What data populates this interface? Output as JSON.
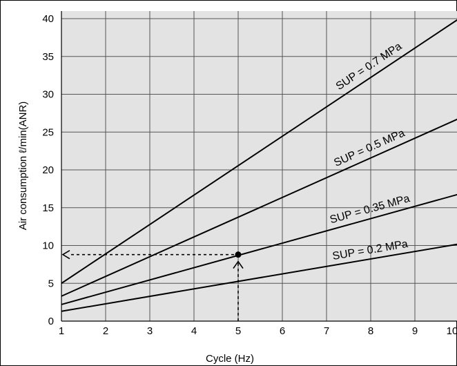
{
  "chart_data": {
    "type": "line",
    "title": "",
    "xlabel": "Cycle (Hz)",
    "ylabel": "Air consumption ℓ/min(ANR)",
    "xlim": [
      1,
      10
    ],
    "ylim": [
      0,
      40
    ],
    "x_ticks": [
      1,
      2,
      3,
      4,
      5,
      6,
      7,
      8,
      9,
      10
    ],
    "y_ticks": [
      0,
      5,
      10,
      15,
      20,
      25,
      30,
      35,
      40
    ],
    "grid": true,
    "background": "#e3e3e3",
    "line_color": "#000000",
    "series": [
      {
        "name": "SUP = 0.7 MPa",
        "x": [
          1,
          10
        ],
        "y": [
          5.0,
          40.0
        ]
      },
      {
        "name": "SUP = 0.5 MPa",
        "x": [
          1,
          10
        ],
        "y": [
          3.3,
          26.8
        ]
      },
      {
        "name": "SUP = 0.35 MPa",
        "x": [
          1,
          10
        ],
        "y": [
          2.2,
          16.8
        ]
      },
      {
        "name": "SUP = 0.2 MPa",
        "x": [
          1,
          10
        ],
        "y": [
          1.3,
          10.2
        ]
      }
    ],
    "example_point": {
      "x": 5,
      "y": 8.8
    }
  }
}
